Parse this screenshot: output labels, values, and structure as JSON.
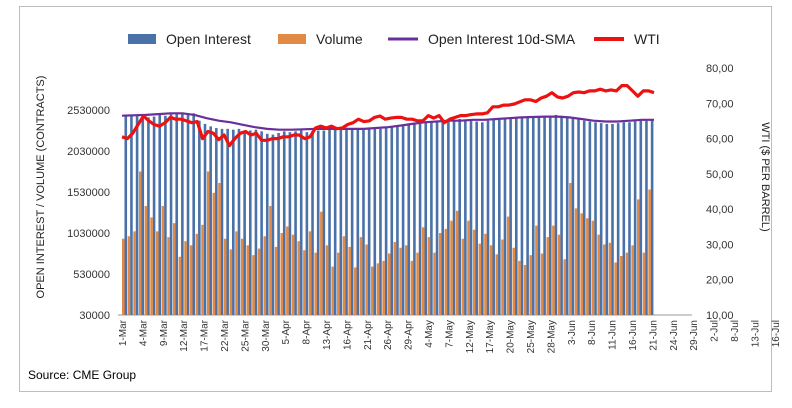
{
  "source": "Source: CME Group",
  "chart_data": {
    "type": "bar",
    "legend": {
      "position": "top",
      "entries": [
        {
          "name": "Open Interest",
          "color": "#4a72a9",
          "kind": "bar"
        },
        {
          "name": "Volume",
          "color": "#e08a45",
          "kind": "bar"
        },
        {
          "name": "Open Interest 10d-SMA",
          "color": "#6a2f9a",
          "kind": "line"
        },
        {
          "name": "WTI",
          "color": "#ee1111",
          "kind": "line"
        }
      ]
    },
    "ylabel_left": "OPEN INTEREST / VOLUME (CONTRACTS)",
    "ylabel_right": "WTI ($ PER BARREL)",
    "ylim_left": [
      30000,
      2530000
    ],
    "yticks_left": [
      "2530000",
      "2030000",
      "1530000",
      "1030000",
      "530000",
      "30000"
    ],
    "ylim_right": [
      10,
      80
    ],
    "yticks_right": [
      "80,00",
      "70,00",
      "60,00",
      "50,00",
      "40,00",
      "30,00",
      "20,00",
      "10,00"
    ],
    "xticks": [
      "1-Mar",
      "4-Mar",
      "9-Mar",
      "12-Mar",
      "17-Mar",
      "22-Mar",
      "25-Mar",
      "30-Mar",
      "5-Apr",
      "8-Apr",
      "13-Apr",
      "16-Apr",
      "21-Apr",
      "26-Apr",
      "29-Apr",
      "4-May",
      "7-May",
      "12-May",
      "17-May",
      "20-May",
      "25-May",
      "28-May",
      "3-Jun",
      "8-Jun",
      "11-Jun",
      "16-Jun",
      "21-Jun",
      "24-Jun",
      "29-Jun",
      "2-Jul",
      "8-Jul",
      "13-Jul",
      "16-Jul"
    ],
    "series": [
      {
        "name": "Open Interest",
        "axis": "left",
        "values": [
          2470000,
          2460000,
          2470000,
          2450000,
          2440000,
          2450000,
          2470000,
          2460000,
          2480000,
          2480000,
          2490000,
          2490000,
          2490000,
          2400000,
          2360000,
          2330000,
          2310000,
          2300000,
          2300000,
          2290000,
          2300000,
          2280000,
          2280000,
          2290000,
          2270000,
          2240000,
          2230000,
          2250000,
          2270000,
          2260000,
          2270000,
          2280000,
          2260000,
          2270000,
          2280000,
          2280000,
          2290000,
          2300000,
          2300000,
          2300000,
          2290000,
          2300000,
          2310000,
          2300000,
          2310000,
          2300000,
          2320000,
          2330000,
          2340000,
          2350000,
          2350000,
          2360000,
          2360000,
          2380000,
          2390000,
          2400000,
          2410000,
          2400000,
          2410000,
          2420000,
          2410000,
          2400000,
          2390000,
          2380000,
          2400000,
          2410000,
          2420000,
          2420000,
          2420000,
          2430000,
          2440000,
          2440000,
          2450000,
          2450000,
          2460000,
          2460000,
          2470000,
          2460000,
          2450000,
          2440000,
          2420000,
          2400000,
          2390000,
          2380000,
          2370000,
          2360000,
          2360000,
          2370000,
          2380000,
          2380000,
          2390000,
          2400000,
          2400000,
          2410000
        ]
      },
      {
        "name": "Volume",
        "axis": "left",
        "values": [
          960000,
          990000,
          1050000,
          1780000,
          1360000,
          1220000,
          1050000,
          1360000,
          980000,
          1150000,
          740000,
          930000,
          880000,
          1020000,
          1130000,
          1780000,
          1520000,
          1640000,
          960000,
          830000,
          1050000,
          960000,
          880000,
          760000,
          840000,
          990000,
          1360000,
          860000,
          1030000,
          1110000,
          1010000,
          930000,
          820000,
          1050000,
          790000,
          1290000,
          880000,
          620000,
          790000,
          990000,
          860000,
          610000,
          980000,
          890000,
          620000,
          660000,
          690000,
          780000,
          920000,
          850000,
          880000,
          690000,
          790000,
          1100000,
          980000,
          790000,
          1030000,
          1080000,
          1180000,
          1300000,
          960000,
          1180000,
          1070000,
          900000,
          1020000,
          880000,
          770000,
          950000,
          1230000,
          850000,
          690000,
          640000,
          760000,
          1120000,
          780000,
          980000,
          1120000,
          1010000,
          710000,
          1640000,
          1330000,
          1270000,
          1210000,
          1180000,
          1010000,
          890000,
          910000,
          670000,
          750000,
          790000,
          880000,
          1440000,
          790000,
          1560000,
          1180000,
          1080000
        ]
      },
      {
        "name": "Open Interest 10d-SMA",
        "axis": "left",
        "values": [
          2460000,
          2465000,
          2470000,
          2480000,
          2490000,
          2490000,
          2470000,
          2430000,
          2400000,
          2380000,
          2350000,
          2320000,
          2300000,
          2290000,
          2290000,
          2295000,
          2300000,
          2300000,
          2300000,
          2300000,
          2300000,
          2310000,
          2320000,
          2340000,
          2360000,
          2380000,
          2390000,
          2400000,
          2400000,
          2410000,
          2410000,
          2420000,
          2430000,
          2440000,
          2445000,
          2450000,
          2450000,
          2440000,
          2420000,
          2400000,
          2390000,
          2390000,
          2400000,
          2410000,
          2410000
        ]
      },
      {
        "name": "WTI",
        "axis": "right",
        "values": [
          60.5,
          60,
          61.5,
          64,
          66.4,
          65,
          64,
          63.5,
          64.5,
          66,
          65.5,
          65.5,
          65,
          64.5,
          64.8,
          60,
          62,
          61.5,
          59.7,
          61,
          58,
          60,
          61.5,
          62,
          61,
          61.5,
          59.5,
          59.5,
          60,
          60,
          60.5,
          60.5,
          61,
          61,
          60,
          60.5,
          63,
          63.5,
          63,
          63.5,
          62.8,
          63,
          64,
          64.5,
          65.5,
          64.8,
          65,
          66,
          66.4,
          65.5,
          65.8,
          66,
          66,
          65.5,
          65.5,
          65,
          65,
          66.5,
          65.8,
          66.5,
          64.5,
          65.5,
          66,
          66.5,
          66.5,
          66.8,
          67,
          67,
          67.3,
          69,
          69,
          69.5,
          69.5,
          69.8,
          70.4,
          71,
          71,
          70.5,
          71.5,
          72,
          73,
          71.8,
          71.5,
          72,
          73,
          73.2,
          73,
          73.5,
          73.5,
          74,
          73.5,
          73.8,
          73.5,
          75,
          75,
          73.5,
          72,
          73.5,
          73.5,
          73
        ]
      }
    ]
  }
}
